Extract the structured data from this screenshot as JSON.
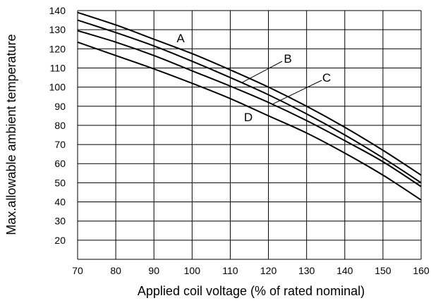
{
  "chart_data": {
    "type": "line",
    "xlabel": "Applied coil voltage (% of rated nominal)",
    "ylabel": "Max.allowable ambient temperature",
    "xlim": [
      70,
      160
    ],
    "ylim": [
      10,
      140
    ],
    "xticks": [
      70,
      80,
      90,
      100,
      110,
      120,
      130,
      140,
      150,
      160
    ],
    "yticks": [
      20,
      30,
      40,
      50,
      60,
      70,
      80,
      90,
      100,
      110,
      120,
      130,
      140
    ],
    "grid": true,
    "series": [
      {
        "name": "A",
        "x": [
          70,
          80,
          90,
          100,
          110,
          120,
          130,
          140,
          150,
          160
        ],
        "y": [
          139,
          132.5,
          125,
          117.5,
          109,
          100,
          90,
          79,
          67,
          54
        ]
      },
      {
        "name": "B",
        "x": [
          70,
          80,
          90,
          100,
          110,
          120,
          130,
          140,
          150,
          160
        ],
        "y": [
          135,
          128.5,
          121.5,
          113.5,
          105,
          96,
          86,
          75,
          63,
          50
        ]
      },
      {
        "name": "C",
        "x": [
          70,
          80,
          90,
          100,
          110,
          120,
          130,
          140,
          150,
          160
        ],
        "y": [
          129.5,
          123.5,
          116.5,
          108.5,
          100.5,
          92,
          82.5,
          72,
          61,
          48
        ]
      },
      {
        "name": "D",
        "x": [
          70,
          80,
          90,
          100,
          110,
          120,
          130,
          140,
          150,
          160
        ],
        "y": [
          123.5,
          116.5,
          109.5,
          102,
          94,
          85,
          76,
          65.5,
          54,
          41
        ]
      }
    ]
  }
}
